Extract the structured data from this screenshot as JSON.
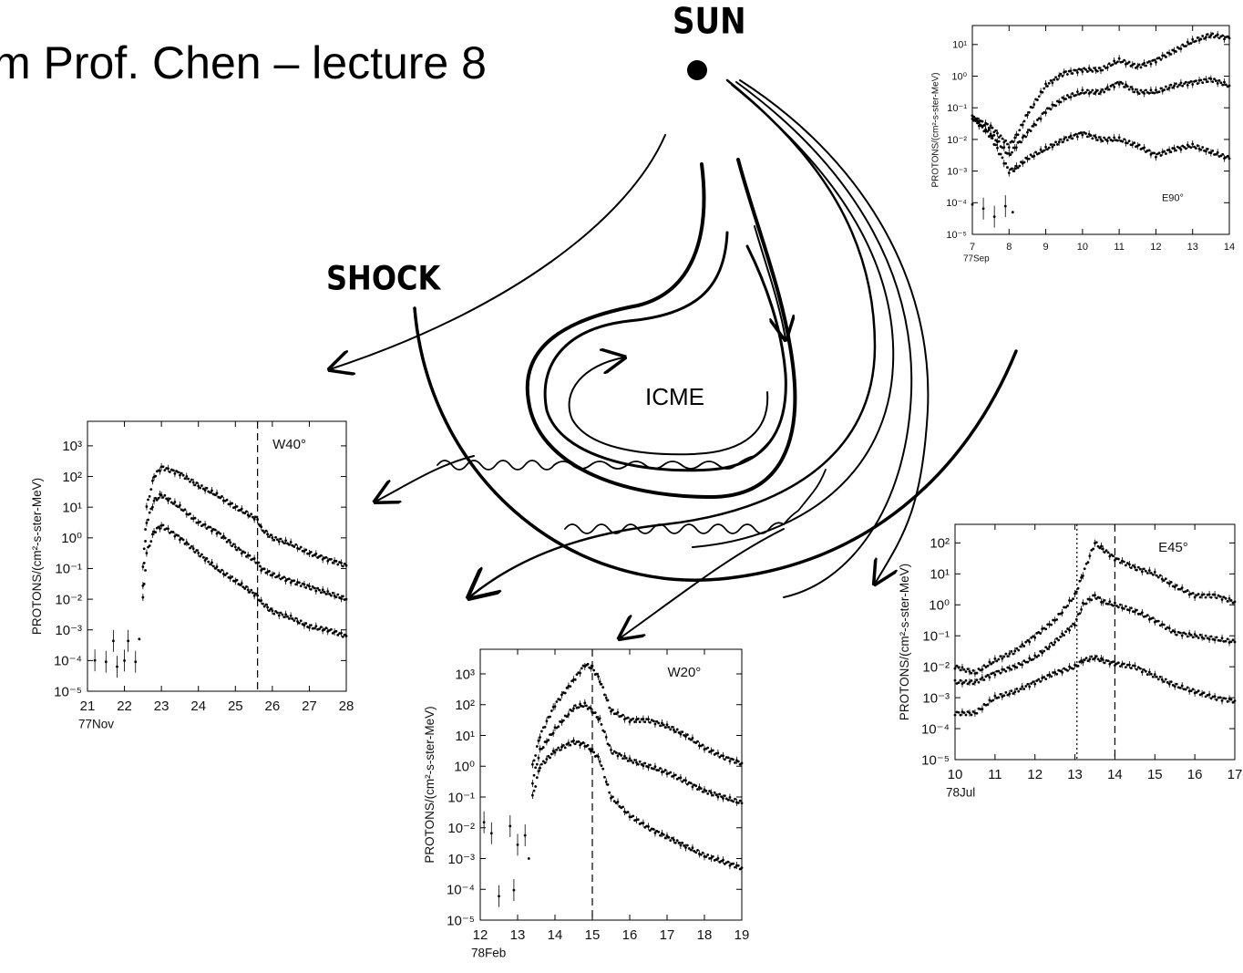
{
  "slide": {
    "title": "m Prof. Chen – lecture 8"
  },
  "diagram": {
    "sun_label": "SUN",
    "shock_label": "SHOCK",
    "icme_label": "ICME"
  },
  "chart_data": [
    {
      "id": "E90",
      "type": "scatter",
      "location_label": "E90°",
      "xlabel": "77Sep",
      "ylabel": "PROTONS/(cm²-s-ster-MeV)",
      "x_ticks": [
        7,
        8,
        9,
        10,
        11,
        12,
        13,
        14
      ],
      "y_ticks": [
        "10⁻⁵",
        "10⁻⁴",
        "10⁻³",
        "10⁻²",
        "10⁻¹",
        "10⁰",
        "10¹"
      ],
      "xlim": [
        7,
        14
      ],
      "ylim_log10": [
        -5,
        1.6
      ],
      "dashed_x": [],
      "series": [
        {
          "values": [
            [
              7,
              -1.3
            ],
            [
              7.5,
              -1.6
            ],
            [
              8,
              -2.2
            ],
            [
              8.2,
              -1.9
            ],
            [
              8.5,
              -1.2
            ],
            [
              9,
              -0.3
            ],
            [
              9.5,
              0.1
            ],
            [
              10,
              0.2
            ],
            [
              10.5,
              0.2
            ],
            [
              11,
              0.5
            ],
            [
              11.5,
              0.3
            ],
            [
              12,
              0.5
            ],
            [
              12.5,
              0.8
            ],
            [
              13,
              1.1
            ],
            [
              13.5,
              1.3
            ],
            [
              14,
              1.2
            ]
          ]
        },
        {
          "values": [
            [
              7,
              -1.3
            ],
            [
              7.5,
              -1.8
            ],
            [
              8,
              -2.5
            ],
            [
              8.2,
              -2.2
            ],
            [
              8.5,
              -1.8
            ],
            [
              9,
              -1.1
            ],
            [
              9.5,
              -0.7
            ],
            [
              10,
              -0.5
            ],
            [
              10.5,
              -0.5
            ],
            [
              11,
              -0.2
            ],
            [
              11.5,
              -0.5
            ],
            [
              12,
              -0.5
            ],
            [
              12.5,
              -0.3
            ],
            [
              13,
              -0.2
            ],
            [
              13.5,
              -0.1
            ],
            [
              14,
              -0.3
            ]
          ]
        },
        {
          "values": [
            [
              7,
              -1.3
            ],
            [
              7.5,
              -1.9
            ],
            [
              8,
              -3.0
            ],
            [
              8.2,
              -2.9
            ],
            [
              8.5,
              -2.6
            ],
            [
              9,
              -2.3
            ],
            [
              9.5,
              -2.0
            ],
            [
              10,
              -1.8
            ],
            [
              10.5,
              -2.0
            ],
            [
              11,
              -2.0
            ],
            [
              11.5,
              -2.2
            ],
            [
              12,
              -2.5
            ],
            [
              12.5,
              -2.3
            ],
            [
              13,
              -2.2
            ],
            [
              13.5,
              -2.4
            ],
            [
              14,
              -2.6
            ]
          ]
        },
        {
          "values": [
            [
              7,
              -4.0
            ],
            [
              7.3,
              -4.2
            ],
            [
              7.6,
              -4.5
            ],
            [
              7.9,
              -4.1
            ],
            [
              8.1,
              -4.3
            ]
          ]
        }
      ]
    },
    {
      "id": "W40",
      "type": "scatter",
      "location_label": "W40°",
      "xlabel": "77Nov",
      "ylabel": "PROTONS/(cm²-s-ster-MeV)",
      "x_ticks": [
        21,
        22,
        23,
        24,
        25,
        26,
        27,
        28
      ],
      "y_ticks": [
        "10⁻⁵",
        "10⁻⁴",
        "10⁻³",
        "10⁻²",
        "10⁻¹",
        "10⁰",
        "10¹",
        "10²",
        "10³"
      ],
      "xlim": [
        21,
        28
      ],
      "ylim_log10": [
        -5,
        3.8
      ],
      "dashed_x": [
        25.6
      ],
      "series": [
        {
          "values": [
            [
              22.5,
              -1.0
            ],
            [
              22.6,
              1.0
            ],
            [
              22.8,
              2.0
            ],
            [
              23,
              2.3
            ],
            [
              23.5,
              2.1
            ],
            [
              24,
              1.7
            ],
            [
              24.5,
              1.4
            ],
            [
              25,
              1.0
            ],
            [
              25.6,
              0.6
            ],
            [
              25.7,
              0.3
            ],
            [
              26,
              0.0
            ],
            [
              26.5,
              -0.2
            ],
            [
              27,
              -0.5
            ],
            [
              27.5,
              -0.7
            ],
            [
              28,
              -0.9
            ]
          ]
        },
        {
          "values": [
            [
              22.5,
              -1.5
            ],
            [
              22.6,
              0.5
            ],
            [
              22.8,
              1.2
            ],
            [
              23,
              1.4
            ],
            [
              23.5,
              1.0
            ],
            [
              24,
              0.5
            ],
            [
              24.5,
              0.2
            ],
            [
              25,
              -0.3
            ],
            [
              25.6,
              -0.8
            ],
            [
              25.7,
              -1.0
            ],
            [
              26,
              -1.2
            ],
            [
              26.5,
              -1.4
            ],
            [
              27,
              -1.6
            ],
            [
              27.5,
              -1.8
            ],
            [
              28,
              -2.0
            ]
          ]
        },
        {
          "values": [
            [
              22.5,
              -2.0
            ],
            [
              22.6,
              -0.5
            ],
            [
              22.8,
              0.2
            ],
            [
              23,
              0.4
            ],
            [
              23.5,
              0.0
            ],
            [
              24,
              -0.5
            ],
            [
              24.5,
              -1.0
            ],
            [
              25,
              -1.4
            ],
            [
              25.6,
              -1.9
            ],
            [
              25.7,
              -2.1
            ],
            [
              26,
              -2.4
            ],
            [
              26.5,
              -2.6
            ],
            [
              27,
              -2.9
            ],
            [
              27.5,
              -3.0
            ],
            [
              28,
              -3.2
            ]
          ]
        },
        {
          "values": [
            [
              21.2,
              -4.0
            ],
            [
              21.5,
              -4.1
            ],
            [
              21.7,
              -3.3
            ],
            [
              21.8,
              -4.2
            ],
            [
              22.0,
              -4.0
            ],
            [
              22.1,
              -3.3
            ],
            [
              22.3,
              -4.1
            ],
            [
              22.4,
              -3.3
            ]
          ]
        }
      ]
    },
    {
      "id": "W20",
      "type": "scatter",
      "location_label": "W20°",
      "xlabel": "78Feb",
      "ylabel": "PROTONS/(cm²-s-ster-MeV)",
      "x_ticks": [
        12,
        13,
        14,
        15,
        16,
        17,
        18,
        19
      ],
      "y_ticks": [
        "10⁻⁵",
        "10⁻⁴",
        "10⁻³",
        "10⁻²",
        "10⁻¹",
        "10⁰",
        "10¹",
        "10²",
        "10³"
      ],
      "xlim": [
        12,
        19
      ],
      "ylim_log10": [
        -5,
        3.8
      ],
      "dashed_x": [
        15
      ],
      "series": [
        {
          "values": [
            [
              13.4,
              0.0
            ],
            [
              13.6,
              1.0
            ],
            [
              14,
              2.0
            ],
            [
              14.5,
              2.8
            ],
            [
              14.8,
              3.3
            ],
            [
              15.0,
              3.2
            ],
            [
              15.2,
              2.8
            ],
            [
              15.5,
              1.8
            ],
            [
              16,
              1.5
            ],
            [
              16.5,
              1.5
            ],
            [
              17,
              1.3
            ],
            [
              17.5,
              1.0
            ],
            [
              18,
              0.6
            ],
            [
              18.5,
              0.3
            ],
            [
              19,
              0.1
            ]
          ]
        },
        {
          "values": [
            [
              13.4,
              -0.5
            ],
            [
              13.6,
              0.5
            ],
            [
              14,
              1.2
            ],
            [
              14.5,
              1.9
            ],
            [
              14.8,
              2.0
            ],
            [
              15.0,
              1.8
            ],
            [
              15.2,
              1.5
            ],
            [
              15.5,
              0.5
            ],
            [
              16,
              0.2
            ],
            [
              16.5,
              0.0
            ],
            [
              17,
              -0.2
            ],
            [
              17.5,
              -0.5
            ],
            [
              18,
              -0.8
            ],
            [
              18.5,
              -1.0
            ],
            [
              19,
              -1.2
            ]
          ]
        },
        {
          "values": [
            [
              13.4,
              -1.0
            ],
            [
              13.6,
              0.0
            ],
            [
              14,
              0.5
            ],
            [
              14.5,
              0.8
            ],
            [
              14.8,
              0.7
            ],
            [
              15.0,
              0.5
            ],
            [
              15.2,
              0.2
            ],
            [
              15.5,
              -1.0
            ],
            [
              16,
              -1.6
            ],
            [
              16.5,
              -2.0
            ],
            [
              17,
              -2.3
            ],
            [
              17.5,
              -2.6
            ],
            [
              18,
              -2.9
            ],
            [
              18.5,
              -3.1
            ],
            [
              19,
              -3.3
            ]
          ]
        },
        {
          "values": [
            [
              12.1,
              -1.8
            ],
            [
              12.3,
              -2.2
            ],
            [
              12.5,
              -4.2
            ],
            [
              12.8,
              -2.0
            ],
            [
              12.9,
              -4.0
            ],
            [
              13.0,
              -2.5
            ],
            [
              13.2,
              -2.3
            ],
            [
              13.3,
              -3.0
            ]
          ]
        }
      ]
    },
    {
      "id": "E45",
      "type": "scatter",
      "location_label": "E45°",
      "xlabel": "78Jul",
      "ylabel": "PROTONS/(cm²-s-ster-MeV)",
      "x_ticks": [
        10,
        11,
        12,
        13,
        14,
        15,
        16,
        17
      ],
      "y_ticks": [
        "10⁻⁵",
        "10⁻⁴",
        "10⁻³",
        "10⁻²",
        "10⁻¹",
        "10⁰",
        "10¹",
        "10²"
      ],
      "xlim": [
        10,
        17
      ],
      "ylim_log10": [
        -5,
        2.6
      ],
      "dashed_x": [
        14
      ],
      "dotted_x": [
        13.05
      ],
      "series": [
        {
          "values": [
            [
              10,
              -2.0
            ],
            [
              10.5,
              -2.2
            ],
            [
              11,
              -1.8
            ],
            [
              11.5,
              -1.5
            ],
            [
              12,
              -1.0
            ],
            [
              12.5,
              -0.5
            ],
            [
              13,
              0.3
            ],
            [
              13.2,
              1.0
            ],
            [
              13.5,
              2.0
            ],
            [
              13.7,
              1.8
            ],
            [
              14,
              1.5
            ],
            [
              14.5,
              1.2
            ],
            [
              15,
              1.0
            ],
            [
              15.5,
              0.6
            ],
            [
              16,
              0.3
            ],
            [
              16.5,
              0.3
            ],
            [
              17,
              0.1
            ]
          ]
        },
        {
          "values": [
            [
              10,
              -2.5
            ],
            [
              10.5,
              -2.5
            ],
            [
              11,
              -2.2
            ],
            [
              11.5,
              -2.0
            ],
            [
              12,
              -1.7
            ],
            [
              12.5,
              -1.2
            ],
            [
              13,
              -0.6
            ],
            [
              13.2,
              0.0
            ],
            [
              13.5,
              0.3
            ],
            [
              13.7,
              0.1
            ],
            [
              14,
              0.0
            ],
            [
              14.5,
              -0.2
            ],
            [
              15,
              -0.5
            ],
            [
              15.5,
              -0.9
            ],
            [
              16,
              -1.0
            ],
            [
              16.5,
              -1.1
            ],
            [
              17,
              -1.2
            ]
          ]
        },
        {
          "values": [
            [
              10,
              -3.5
            ],
            [
              10.5,
              -3.5
            ],
            [
              11,
              -3.0
            ],
            [
              11.5,
              -2.8
            ],
            [
              12,
              -2.5
            ],
            [
              12.5,
              -2.2
            ],
            [
              13,
              -2.0
            ],
            [
              13.2,
              -1.8
            ],
            [
              13.5,
              -1.7
            ],
            [
              13.7,
              -1.8
            ],
            [
              14,
              -1.9
            ],
            [
              14.5,
              -2.0
            ],
            [
              15,
              -2.3
            ],
            [
              15.5,
              -2.6
            ],
            [
              16,
              -2.8
            ],
            [
              16.5,
              -3.0
            ],
            [
              17,
              -3.1
            ]
          ]
        }
      ]
    }
  ]
}
